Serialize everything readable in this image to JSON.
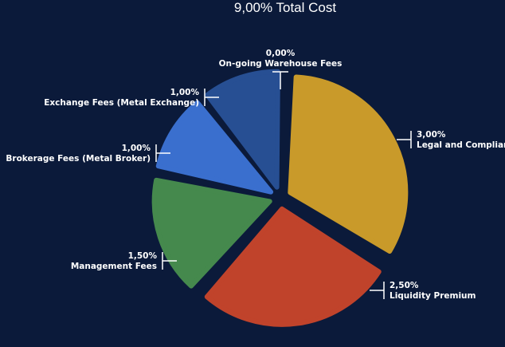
{
  "chart_data": {
    "type": "pie",
    "title": "9,00% Total Cost",
    "slices": [
      {
        "label": "Legal and Compliance",
        "value_label": "3,00%",
        "value": 3.0,
        "color": "#c99a2a"
      },
      {
        "label": "Liquidity Premium",
        "value_label": "2,50%",
        "value": 2.5,
        "color": "#c0432b"
      },
      {
        "label": "Management Fees",
        "value_label": "1,50%",
        "value": 1.5,
        "color": "#45894d"
      },
      {
        "label": "Brokerage Fees (Metal Broker)",
        "value_label": "1,00%",
        "value": 1.0,
        "color": "#3a6fce"
      },
      {
        "label": "Exchange Fees (Metal Exchange)",
        "value_label": "1,00%",
        "value": 1.0,
        "color": "#274f93"
      },
      {
        "label": "On-going Warehouse Fees",
        "value_label": "0,00%",
        "value": 0.0,
        "color": "#1f3f7a"
      }
    ]
  }
}
